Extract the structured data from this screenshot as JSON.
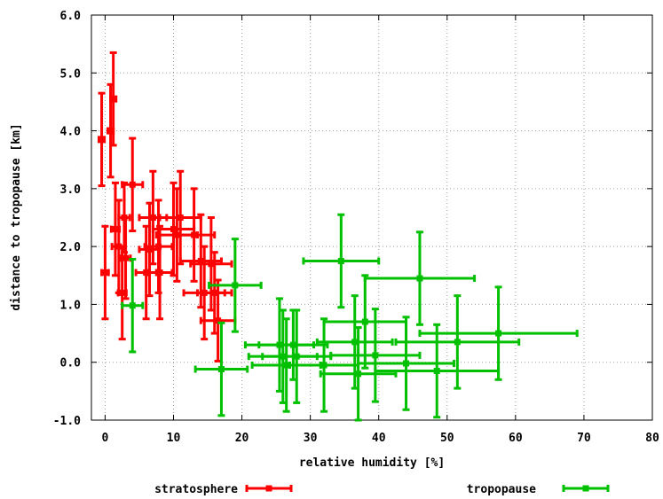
{
  "chart_data": {
    "type": "scatter",
    "xlabel": "relative humidity [%]",
    "ylabel": "distance to tropopause [km]",
    "xlim": [
      -2,
      80
    ],
    "ylim": [
      -1,
      6
    ],
    "x_ticks": [
      "0",
      "10",
      "20",
      "30",
      "40",
      "50",
      "60",
      "70",
      "80"
    ],
    "y_ticks": [
      "-1.0",
      "0.0",
      "1.0",
      "2.0",
      "3.0",
      "4.0",
      "5.0",
      "6.0"
    ],
    "grid": true,
    "legend_position": "bottom",
    "series": [
      {
        "name": "stratosphere",
        "color": "#ff0000",
        "points": [
          {
            "x": -0.5,
            "y": 3.85,
            "xerr": 0.4,
            "yerr": 0.8
          },
          {
            "x": 0.0,
            "y": 1.55,
            "xerr": 0.5,
            "yerr": 0.8
          },
          {
            "x": 0.8,
            "y": 4.0,
            "xerr": 0.4,
            "yerr": 0.8
          },
          {
            "x": 1.2,
            "y": 4.55,
            "xerr": 0.4,
            "yerr": 0.8
          },
          {
            "x": 1.5,
            "y": 2.3,
            "xerr": 0.6,
            "yerr": 0.8
          },
          {
            "x": 2.0,
            "y": 2.0,
            "xerr": 1.0,
            "yerr": 0.8
          },
          {
            "x": 2.5,
            "y": 1.2,
            "xerr": 0.6,
            "yerr": 0.8
          },
          {
            "x": 2.8,
            "y": 2.5,
            "xerr": 0.8,
            "yerr": 0.6
          },
          {
            "x": 3.0,
            "y": 1.8,
            "xerr": 0.7,
            "yerr": 0.7
          },
          {
            "x": 4.0,
            "y": 3.07,
            "xerr": 1.5,
            "yerr": 0.8
          },
          {
            "x": 6.0,
            "y": 1.55,
            "xerr": 1.5,
            "yerr": 0.8
          },
          {
            "x": 6.5,
            "y": 1.95,
            "xerr": 1.5,
            "yerr": 0.8
          },
          {
            "x": 7.0,
            "y": 2.5,
            "xerr": 2.0,
            "yerr": 0.8
          },
          {
            "x": 7.8,
            "y": 2.0,
            "xerr": 2.0,
            "yerr": 0.8
          },
          {
            "x": 8.0,
            "y": 1.55,
            "xerr": 1.8,
            "yerr": 0.8
          },
          {
            "x": 10.0,
            "y": 2.3,
            "xerr": 3.0,
            "yerr": 0.8
          },
          {
            "x": 10.5,
            "y": 2.2,
            "xerr": 3.0,
            "yerr": 0.8
          },
          {
            "x": 11.0,
            "y": 2.5,
            "xerr": 3.0,
            "yerr": 0.8
          },
          {
            "x": 13.0,
            "y": 2.2,
            "xerr": 3.0,
            "yerr": 0.8
          },
          {
            "x": 14.0,
            "y": 1.75,
            "xerr": 3.0,
            "yerr": 0.8
          },
          {
            "x": 14.5,
            "y": 1.2,
            "xerr": 3.0,
            "yerr": 0.8
          },
          {
            "x": 15.5,
            "y": 1.7,
            "xerr": 3.0,
            "yerr": 0.8
          },
          {
            "x": 16.0,
            "y": 1.2,
            "xerr": 2.5,
            "yerr": 0.7
          },
          {
            "x": 16.5,
            "y": 0.72,
            "xerr": 2.5,
            "yerr": 0.7
          }
        ]
      },
      {
        "name": "tropopause",
        "color": "#00c000",
        "points": [
          {
            "x": 4.0,
            "y": 0.98,
            "xerr": 1.5,
            "yerr": 0.8
          },
          {
            "x": 17.0,
            "y": -0.12,
            "xerr": 3.8,
            "yerr": 0.8
          },
          {
            "x": 19.0,
            "y": 1.33,
            "xerr": 3.8,
            "yerr": 0.8
          },
          {
            "x": 25.5,
            "y": 0.3,
            "xerr": 5.0,
            "yerr": 0.8
          },
          {
            "x": 26.0,
            "y": 0.1,
            "xerr": 5.0,
            "yerr": 0.8
          },
          {
            "x": 26.5,
            "y": -0.05,
            "xerr": 5.0,
            "yerr": 0.8
          },
          {
            "x": 27.5,
            "y": 0.3,
            "xerr": 5.0,
            "yerr": 0.6
          },
          {
            "x": 28.0,
            "y": 0.1,
            "xerr": 5.0,
            "yerr": 0.8
          },
          {
            "x": 32.0,
            "y": -0.05,
            "xerr": 5.0,
            "yerr": 0.8
          },
          {
            "x": 34.5,
            "y": 1.75,
            "xerr": 5.5,
            "yerr": 0.8
          },
          {
            "x": 36.5,
            "y": 0.35,
            "xerr": 5.5,
            "yerr": 0.8
          },
          {
            "x": 37.0,
            "y": -0.2,
            "xerr": 5.5,
            "yerr": 0.8
          },
          {
            "x": 38.0,
            "y": 0.7,
            "xerr": 6.0,
            "yerr": 0.8
          },
          {
            "x": 39.5,
            "y": 0.12,
            "xerr": 6.5,
            "yerr": 0.8
          },
          {
            "x": 44.0,
            "y": -0.02,
            "xerr": 7.0,
            "yerr": 0.8
          },
          {
            "x": 46.0,
            "y": 1.45,
            "xerr": 8.0,
            "yerr": 0.8
          },
          {
            "x": 48.5,
            "y": -0.15,
            "xerr": 9.0,
            "yerr": 0.8
          },
          {
            "x": 51.5,
            "y": 0.35,
            "xerr": 9.0,
            "yerr": 0.8
          },
          {
            "x": 57.5,
            "y": 0.5,
            "xerr": 11.5,
            "yerr": 0.8
          }
        ]
      }
    ]
  }
}
